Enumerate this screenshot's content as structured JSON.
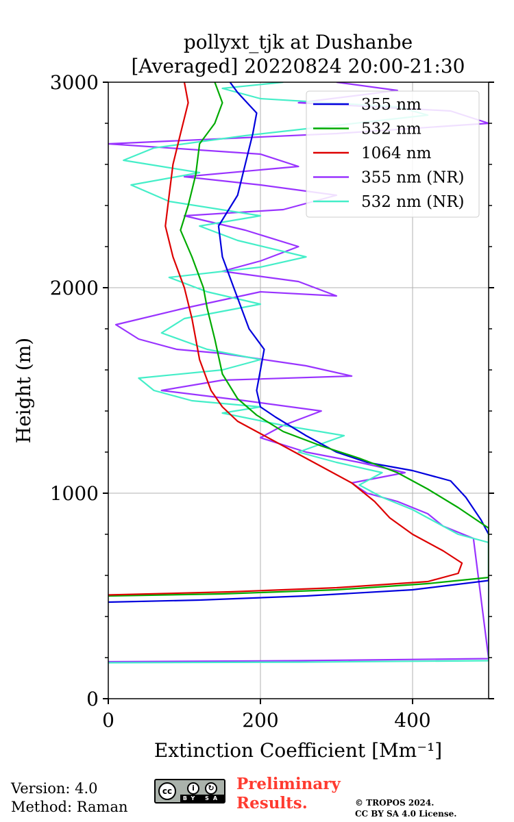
{
  "chart_data": {
    "type": "line",
    "title": "pollyxt_tjk at Dushanbe",
    "subtitle": "[Averaged] 20220824 20:00-21:30",
    "xlabel": "Extinction Coefficient [Mm⁻¹]",
    "ylabel": "Height (m)",
    "xlim": [
      0,
      500
    ],
    "ylim": [
      0,
      3000
    ],
    "x_ticks": [
      "0",
      "200",
      "400"
    ],
    "y_ticks": [
      "0",
      "1000",
      "2000",
      "3000"
    ],
    "grid": true,
    "legend_position": "top-right",
    "series": [
      {
        "name": "355 nm",
        "color": "#0000dd",
        "points": [
          [
            0,
            470
          ],
          [
            120,
            480
          ],
          [
            260,
            500
          ],
          [
            400,
            530
          ],
          [
            500,
            575
          ],
          [
            500,
            800
          ],
          [
            490,
            870
          ],
          [
            470,
            980
          ],
          [
            450,
            1060
          ],
          [
            400,
            1110
          ],
          [
            340,
            1150
          ],
          [
            300,
            1200
          ],
          [
            260,
            1280
          ],
          [
            220,
            1370
          ],
          [
            200,
            1420
          ],
          [
            195,
            1500
          ],
          [
            205,
            1700
          ],
          [
            185,
            1800
          ],
          [
            165,
            2000
          ],
          [
            150,
            2150
          ],
          [
            145,
            2300
          ],
          [
            170,
            2450
          ],
          [
            180,
            2600
          ],
          [
            190,
            2750
          ],
          [
            195,
            2850
          ],
          [
            170,
            2950
          ],
          [
            160,
            3000
          ]
        ]
      },
      {
        "name": "532 nm",
        "color": "#00aa00",
        "points": [
          [
            0,
            500
          ],
          [
            150,
            510
          ],
          [
            300,
            530
          ],
          [
            420,
            560
          ],
          [
            500,
            590
          ],
          [
            500,
            830
          ],
          [
            460,
            930
          ],
          [
            420,
            1020
          ],
          [
            380,
            1100
          ],
          [
            330,
            1170
          ],
          [
            280,
            1230
          ],
          [
            230,
            1300
          ],
          [
            195,
            1380
          ],
          [
            170,
            1460
          ],
          [
            150,
            1580
          ],
          [
            140,
            1750
          ],
          [
            130,
            1900
          ],
          [
            125,
            2000
          ],
          [
            110,
            2150
          ],
          [
            95,
            2280
          ],
          [
            105,
            2400
          ],
          [
            115,
            2550
          ],
          [
            120,
            2700
          ],
          [
            140,
            2800
          ],
          [
            150,
            2900
          ],
          [
            140,
            3000
          ]
        ]
      },
      {
        "name": "1064 nm",
        "color": "#dd0000",
        "points": [
          [
            0,
            505
          ],
          [
            160,
            520
          ],
          [
            300,
            540
          ],
          [
            420,
            570
          ],
          [
            460,
            610
          ],
          [
            465,
            660
          ],
          [
            440,
            720
          ],
          [
            400,
            800
          ],
          [
            370,
            880
          ],
          [
            350,
            960
          ],
          [
            320,
            1050
          ],
          [
            280,
            1130
          ],
          [
            240,
            1210
          ],
          [
            200,
            1290
          ],
          [
            170,
            1350
          ],
          [
            150,
            1420
          ],
          [
            135,
            1500
          ],
          [
            120,
            1650
          ],
          [
            110,
            1850
          ],
          [
            100,
            2000
          ],
          [
            85,
            2150
          ],
          [
            75,
            2300
          ],
          [
            80,
            2450
          ],
          [
            85,
            2600
          ],
          [
            95,
            2750
          ],
          [
            105,
            2900
          ],
          [
            100,
            3000
          ]
        ]
      },
      {
        "name": "355 nm (NR)",
        "color": "#9933ff",
        "points": [
          [
            0,
            180
          ],
          [
            250,
            185
          ],
          [
            500,
            195
          ],
          [
            480,
            780
          ],
          [
            440,
            840
          ],
          [
            420,
            900
          ],
          [
            380,
            960
          ],
          [
            340,
            1000
          ],
          [
            320,
            1050
          ],
          [
            390,
            1100
          ],
          [
            330,
            1150
          ],
          [
            260,
            1200
          ],
          [
            200,
            1270
          ],
          [
            230,
            1330
          ],
          [
            280,
            1400
          ],
          [
            180,
            1450
          ],
          [
            70,
            1500
          ],
          [
            150,
            1550
          ],
          [
            320,
            1570
          ],
          [
            260,
            1620
          ],
          [
            150,
            1680
          ],
          [
            90,
            1700
          ],
          [
            40,
            1750
          ],
          [
            10,
            1820
          ],
          [
            100,
            1900
          ],
          [
            200,
            1980
          ],
          [
            300,
            1960
          ],
          [
            250,
            2030
          ],
          [
            150,
            2080
          ],
          [
            200,
            2130
          ],
          [
            250,
            2200
          ],
          [
            180,
            2280
          ],
          [
            100,
            2350
          ],
          [
            230,
            2380
          ],
          [
            300,
            2450
          ],
          [
            200,
            2500
          ],
          [
            100,
            2540
          ],
          [
            250,
            2590
          ],
          [
            200,
            2650
          ],
          [
            0,
            2700
          ],
          [
            300,
            2750
          ],
          [
            500,
            2800
          ],
          [
            450,
            2860
          ],
          [
            250,
            2900
          ],
          [
            380,
            2960
          ],
          [
            300,
            3000
          ]
        ]
      },
      {
        "name": "532 nm (NR)",
        "color": "#44eec8",
        "points": [
          [
            0,
            175
          ],
          [
            250,
            178
          ],
          [
            500,
            185
          ],
          [
            500,
            760
          ],
          [
            460,
            800
          ],
          [
            430,
            860
          ],
          [
            400,
            920
          ],
          [
            360,
            980
          ],
          [
            330,
            1040
          ],
          [
            360,
            1100
          ],
          [
            300,
            1150
          ],
          [
            250,
            1200
          ],
          [
            310,
            1280
          ],
          [
            230,
            1330
          ],
          [
            150,
            1390
          ],
          [
            200,
            1420
          ],
          [
            110,
            1450
          ],
          [
            60,
            1500
          ],
          [
            40,
            1560
          ],
          [
            150,
            1600
          ],
          [
            200,
            1650
          ],
          [
            130,
            1700
          ],
          [
            70,
            1780
          ],
          [
            100,
            1850
          ],
          [
            200,
            1920
          ],
          [
            130,
            1980
          ],
          [
            80,
            2050
          ],
          [
            200,
            2100
          ],
          [
            260,
            2150
          ],
          [
            170,
            2230
          ],
          [
            120,
            2300
          ],
          [
            200,
            2350
          ],
          [
            80,
            2420
          ],
          [
            30,
            2500
          ],
          [
            120,
            2560
          ],
          [
            20,
            2620
          ],
          [
            60,
            2680
          ],
          [
            180,
            2740
          ],
          [
            300,
            2790
          ],
          [
            420,
            2840
          ],
          [
            380,
            2880
          ],
          [
            200,
            2920
          ],
          [
            150,
            2970
          ],
          [
            230,
            3000
          ]
        ]
      }
    ]
  },
  "footer": {
    "version": "Version: 4.0",
    "method": "Method: Raman",
    "cc_label": "cc",
    "cc_by": "BY",
    "cc_sa": "SA",
    "preliminary_line1": "Preliminary",
    "preliminary_line2": "Results.",
    "copyright_line1": "© TROPOS 2024.",
    "copyright_line2": "CC BY SA 4.0 License."
  }
}
